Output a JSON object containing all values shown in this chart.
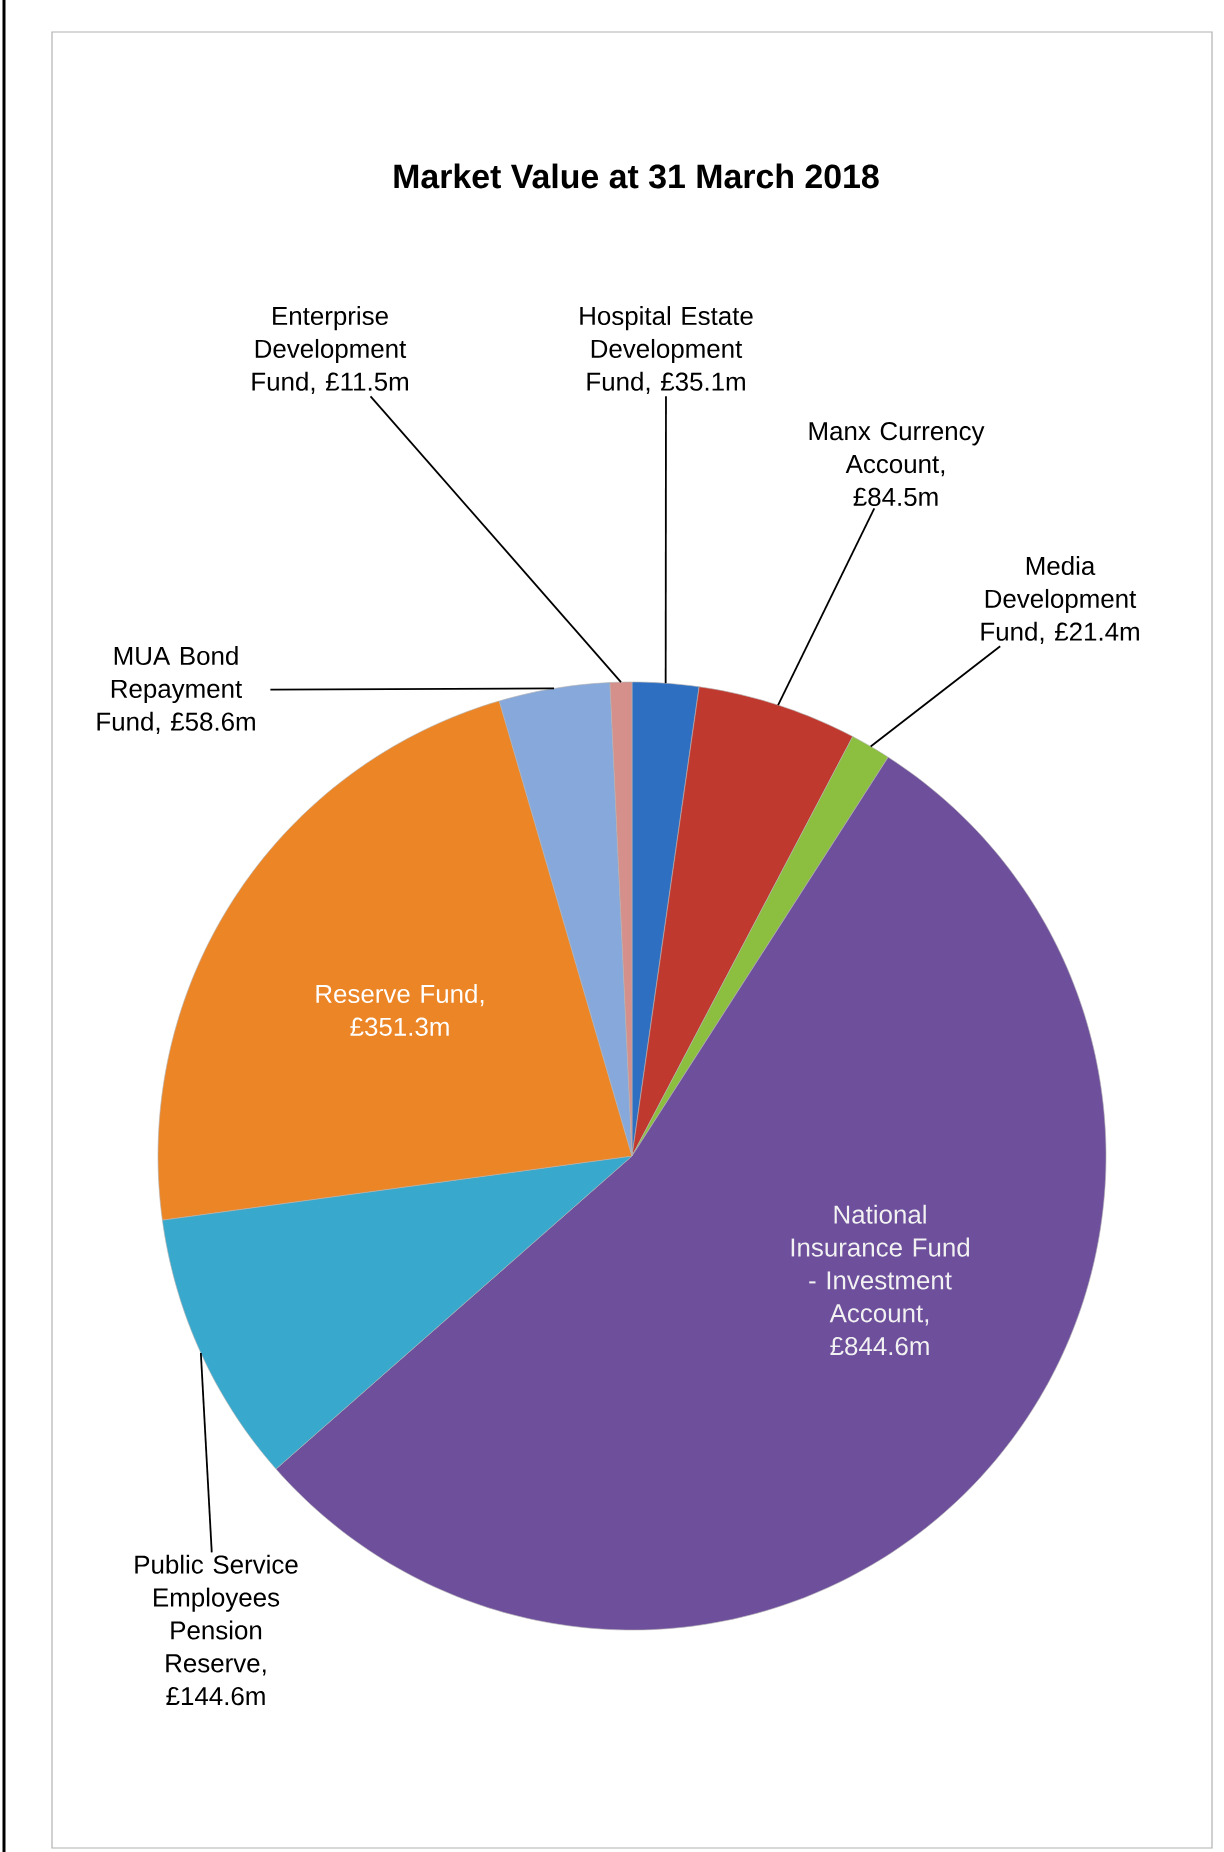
{
  "chart_data": {
    "type": "pie",
    "title": "Market Value at 31 March 2018",
    "categories": [
      "Hospital Estate Development Fund",
      "Manx Currency Account",
      "Media Development Fund",
      "National Insurance Fund - Investment Account",
      "Public Service Employees Pension Reserve",
      "Reserve Fund",
      "MUA Bond Repayment Fund",
      "Enterprise Development Fund"
    ],
    "values": [
      35.1,
      84.5,
      21.4,
      844.6,
      144.6,
      351.3,
      58.6,
      11.5
    ],
    "value_labels": [
      ", £35.1m",
      ", £84.5m",
      ", £21.4m",
      ", £844.6m",
      ", £144.6m",
      ", £351.3m",
      ", £58.6m",
      ", £11.5m"
    ],
    "colors": [
      "#2f6fc2",
      "#c0392f",
      "#8cbf3f",
      "#6e4f9c",
      "#38a8cc",
      "#ec8526",
      "#86a8db",
      "#d6908c"
    ],
    "legend": false
  }
}
